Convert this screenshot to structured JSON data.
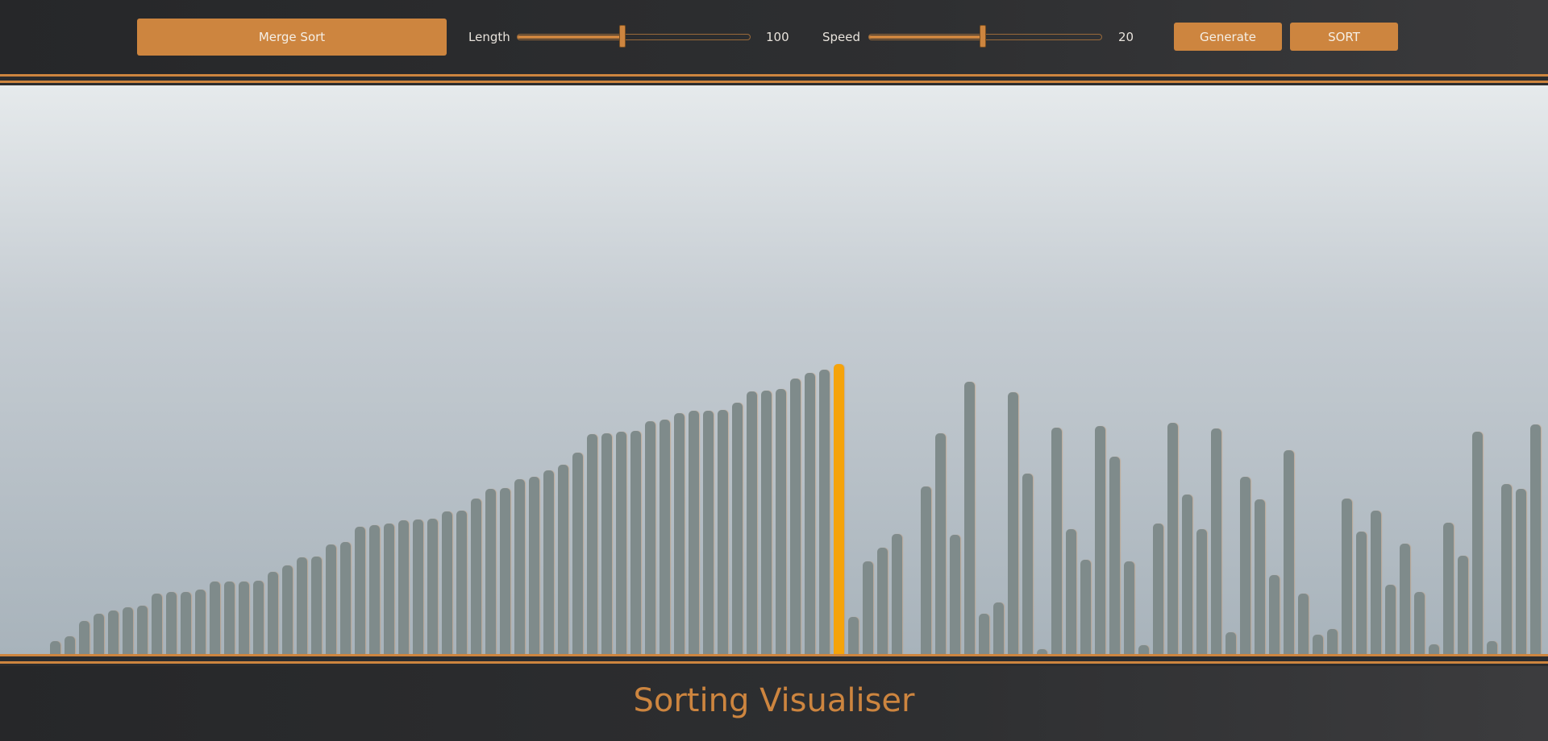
{
  "toolbar": {
    "algorithm": "Merge Sort",
    "length_label": "Length",
    "length_value": "100",
    "speed_label": "Speed",
    "speed_value": "20",
    "generate_label": "Generate",
    "sort_label": "SORT"
  },
  "sliders": {
    "length_fraction": 0.45,
    "speed_fraction": 0.49
  },
  "footer": {
    "title": "Sorting Visualiser"
  },
  "colors": {
    "accent": "#cd853f",
    "bar": "#7f8b8b",
    "active_bar": "#f5a30a"
  },
  "bars": {
    "active_index": 54,
    "values": [
      12,
      16,
      30,
      37,
      40,
      43,
      44,
      55,
      57,
      57,
      59,
      66,
      66,
      66,
      67,
      75,
      81,
      88,
      89,
      100,
      102,
      116,
      118,
      119,
      122,
      123,
      124,
      130,
      131,
      142,
      151,
      152,
      160,
      162,
      168,
      173,
      184,
      201,
      202,
      203,
      204,
      213,
      214,
      220,
      222,
      222,
      223,
      230,
      240,
      241,
      242,
      252,
      257,
      260,
      265,
      34,
      85,
      97,
      110,
      0,
      0,
      0,
      0,
      0,
      0,
      0,
      0,
      0,
      0,
      0,
      0,
      0,
      0,
      0,
      0,
      0,
      0,
      0,
      0,
      0,
      0,
      0,
      0,
      0,
      0,
      0,
      0,
      0,
      0,
      0,
      0,
      0,
      0,
      0,
      0,
      0,
      0,
      0,
      0,
      0
    ],
    "right_values": [
      153,
      202,
      109,
      249,
      37,
      47,
      239,
      165,
      2,
      207,
      114,
      86,
      208,
      180,
      85,
      8,
      119,
      211,
      146,
      114,
      206,
      20,
      162,
      141,
      72,
      186,
      55,
      18,
      23,
      142,
      112,
      131,
      63,
      101,
      57,
      9,
      120,
      90,
      203,
      12,
      155,
      151,
      210
    ],
    "right_start_index": 60
  }
}
